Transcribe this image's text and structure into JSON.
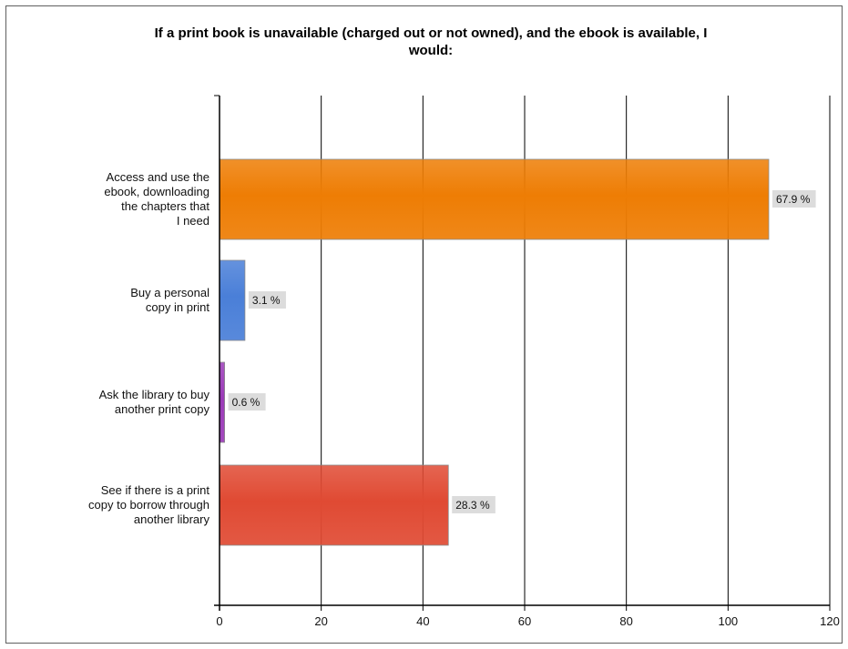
{
  "chart_data": {
    "type": "bar",
    "orientation": "horizontal",
    "title": "If a print book is unavailable (charged out or not owned),  and the ebook is available, I would:",
    "categories": [
      "Access and use the ebook, downloading the chapters that I need",
      "Buy a personal copy in print",
      "Ask the library to buy another print copy",
      "See if there is a print copy to borrow through another library"
    ],
    "values": [
      108,
      5,
      1,
      45
    ],
    "data_labels": [
      "67.9 %",
      "3.1 %",
      "0.6 %",
      "28.3 %"
    ],
    "colors": [
      "#ee7d04",
      "#4a7fd8",
      "#9b3ab8",
      "#e04a33"
    ],
    "xlim": [
      0,
      120
    ],
    "xticks": [
      0,
      20,
      40,
      60,
      80,
      100,
      120
    ],
    "grid": true,
    "legend": "none",
    "xlabel": "",
    "ylabel": ""
  }
}
